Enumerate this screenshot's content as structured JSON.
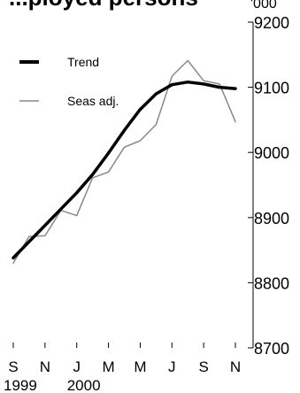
{
  "chart_data": {
    "type": "line",
    "title": "...ployed persons",
    "unit": "'000",
    "x": [
      "Sep 1999",
      "Oct 1999",
      "Nov 1999",
      "Dec 1999",
      "Jan 2000",
      "Feb 2000",
      "Mar 2000",
      "Apr 2000",
      "May 2000",
      "Jun 2000",
      "Jul 2000",
      "Aug 2000",
      "Sep 2000",
      "Oct 2000",
      "Nov 2000"
    ],
    "x_tick_labels": [
      "S",
      "N",
      "J",
      "M",
      "M",
      "J",
      "S",
      "N"
    ],
    "x_year_labels": [
      "1999",
      "2000"
    ],
    "series": [
      {
        "name": "Trend",
        "color": "#000000",
        "values": [
          8838,
          8863,
          8888,
          8913,
          8938,
          8966,
          8999,
          9034,
          9066,
          9090,
          9104,
          9108,
          9105,
          9100,
          9098
        ]
      },
      {
        "name": "Seas adj.",
        "color": "#888888",
        "values": [
          8830,
          8871,
          8872,
          8911,
          8903,
          8961,
          8970,
          9008,
          9018,
          9043,
          9117,
          9141,
          9110,
          9105,
          9047
        ]
      }
    ],
    "ylim": [
      8700,
      9200
    ],
    "yticks": [
      8700,
      8800,
      8900,
      9000,
      9100,
      9200
    ],
    "ytick_labels": [
      "8700",
      "8800",
      "8900",
      "9000",
      "9100",
      "9200"
    ],
    "axis_position": "right",
    "grid": false,
    "legend": {
      "placement": "top-left",
      "entries": [
        "Trend",
        "Seas adj."
      ]
    }
  }
}
